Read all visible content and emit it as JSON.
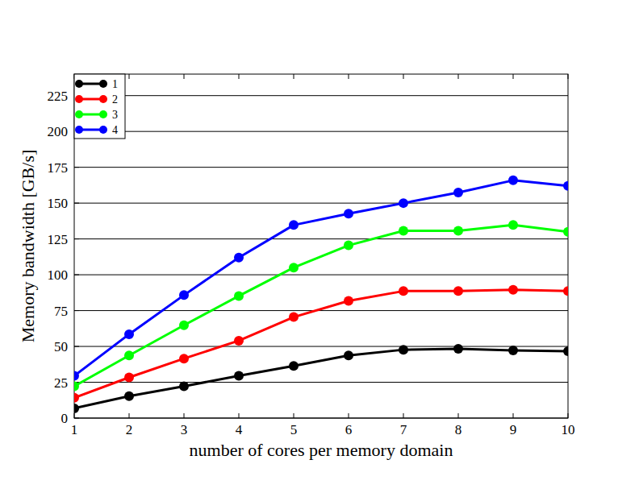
{
  "chart_data": {
    "type": "line",
    "x_label": "number of cores per memory domain",
    "y_label": "Memory bandwidth [GB/s]",
    "x": [
      1,
      2,
      3,
      4,
      5,
      6,
      7,
      8,
      9,
      10
    ],
    "xlim": [
      1,
      10
    ],
    "xticks": [
      1,
      2,
      3,
      4,
      5,
      6,
      7,
      8,
      9,
      10
    ],
    "ylim": [
      0,
      240
    ],
    "yticks": [
      0,
      25,
      50,
      75,
      100,
      125,
      150,
      175,
      200,
      225
    ],
    "grid": true,
    "legend": "top-left",
    "marker": "circle",
    "line_style": "solid",
    "series": [
      {
        "name": "1",
        "color": "#000000",
        "values": [
          6.8,
          15.3,
          22.2,
          29.5,
          36.4,
          43.7,
          47.7,
          48.3,
          47.2,
          46.6
        ]
      },
      {
        "name": "2",
        "color": "#ff0000",
        "values": [
          14.2,
          28.4,
          41.5,
          54,
          70.5,
          81.8,
          88.6,
          88.6,
          89.5,
          88.6
        ]
      },
      {
        "name": "3",
        "color": "#00ff00",
        "values": [
          22.2,
          43.7,
          64.8,
          85.2,
          105,
          120.5,
          130.7,
          130.7,
          134.7,
          130
        ]
      },
      {
        "name": "4",
        "color": "#0000ff",
        "values": [
          29.5,
          58.5,
          85.8,
          112,
          134.7,
          142.6,
          150,
          157.4,
          165.9,
          162
        ]
      }
    ]
  }
}
